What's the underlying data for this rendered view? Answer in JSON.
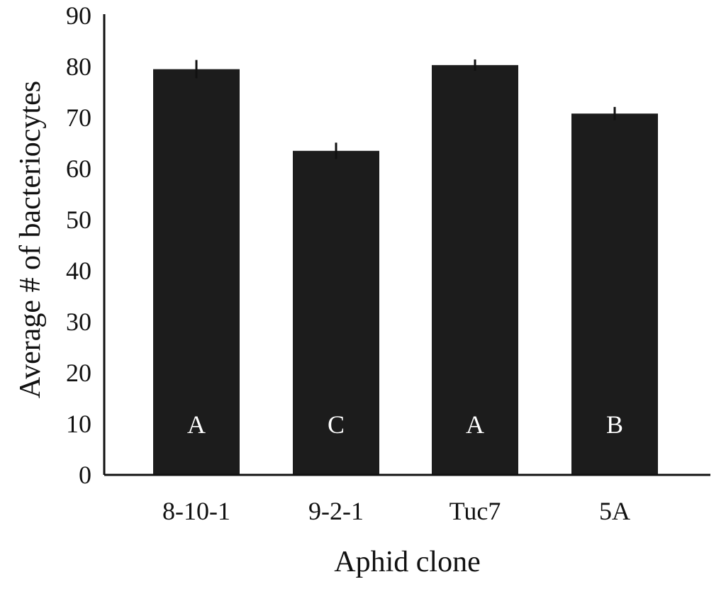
{
  "chart_data": {
    "type": "bar",
    "categories": [
      "8-10-1",
      "9-2-1",
      "Tuc7",
      "5A"
    ],
    "values": [
      79.5,
      63.5,
      80.3,
      70.8
    ],
    "errors": [
      1.8,
      1.6,
      1.1,
      1.3
    ],
    "bar_labels": [
      "A",
      "C",
      "A",
      "B"
    ],
    "xlabel": "Aphid clone",
    "ylabel": "Average # of bacteriocytes",
    "ylim": [
      0,
      90
    ],
    "yticks": [
      0,
      10,
      20,
      30,
      40,
      50,
      60,
      70,
      80,
      90
    ],
    "grid": false,
    "bar_color": "#1c1c1c",
    "bar_label_color": "#ffffff"
  }
}
